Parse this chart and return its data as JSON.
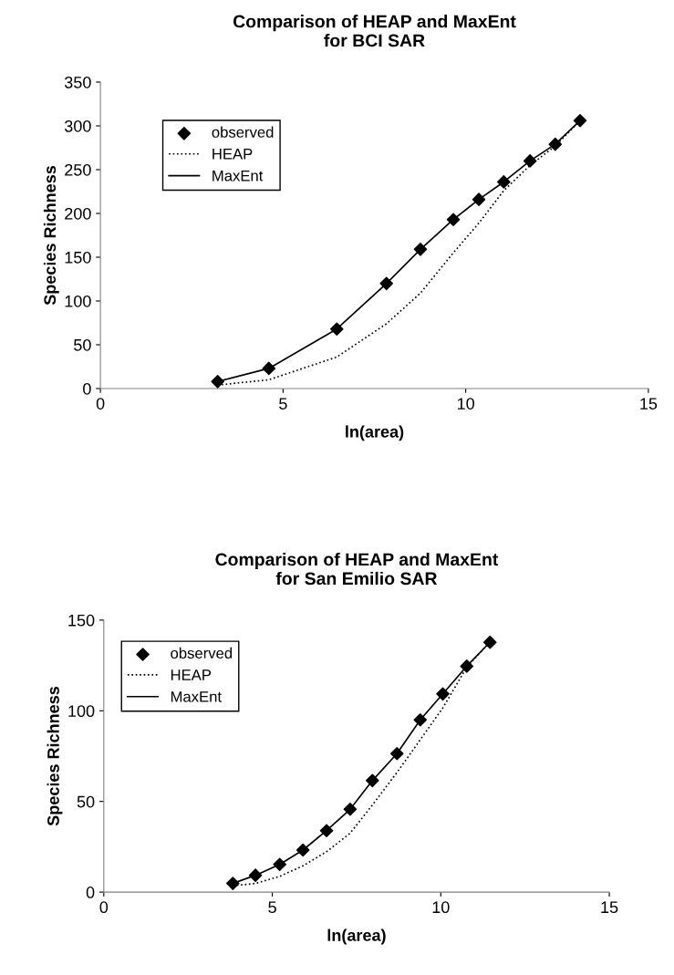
{
  "chart_data": [
    {
      "type": "line",
      "title": "Comparison of HEAP and MaxEnt\nfor BCI SAR",
      "xlabel": "ln(area)",
      "ylabel": "Species Richness",
      "xlim": [
        0,
        15
      ],
      "ylim": [
        0,
        350
      ],
      "xticks": [
        0,
        5,
        10,
        15
      ],
      "yticks": [
        0,
        50,
        100,
        150,
        200,
        250,
        300,
        350
      ],
      "grid": false,
      "legend": "top left",
      "series": [
        {
          "name": "observed",
          "type": "scatter",
          "marker": "diamond",
          "color": "#000000",
          "x": [
            3.21,
            4.61,
            6.47,
            7.83,
            8.76,
            9.66,
            10.36,
            11.04,
            11.76,
            12.45,
            13.13
          ],
          "values": [
            8,
            23,
            68,
            120,
            159,
            193,
            216,
            236,
            260,
            279,
            306
          ]
        },
        {
          "name": "HEAP",
          "line_style": "dotted",
          "color": "#000000",
          "x": [
            3.21,
            4.61,
            6.47,
            7.83,
            8.76,
            9.66,
            10.36,
            11.04,
            11.76,
            12.45,
            13.13
          ],
          "values": [
            4,
            10,
            36,
            74,
            109,
            155,
            189,
            226,
            255,
            277,
            306
          ]
        },
        {
          "name": "MaxEnt",
          "line_style": "solid",
          "color": "#000000",
          "x": [
            3.21,
            4.61,
            6.47,
            7.83,
            8.76,
            9.66,
            10.36,
            11.04,
            11.76,
            12.45,
            13.13
          ],
          "values": [
            8,
            23,
            68,
            120,
            159,
            193,
            216,
            236,
            260,
            279,
            306
          ]
        }
      ]
    },
    {
      "type": "line",
      "title": "Comparison of HEAP and MaxEnt\nfor San Emilio SAR",
      "xlabel": "ln(area)",
      "ylabel": "Species Richness",
      "xlim": [
        0,
        15
      ],
      "ylim": [
        0,
        150
      ],
      "xticks": [
        0,
        5,
        10,
        15
      ],
      "yticks": [
        0,
        50,
        100,
        150
      ],
      "grid": false,
      "legend": "top left",
      "series": [
        {
          "name": "observed",
          "type": "scatter",
          "marker": "diamond",
          "color": "#000000",
          "x": [
            3.83,
            4.5,
            5.22,
            5.91,
            6.61,
            7.31,
            7.97,
            8.7,
            9.39,
            10.06,
            10.77,
            11.46
          ],
          "values": [
            4.8,
            9.3,
            15.3,
            23.2,
            33.9,
            45.7,
            61.5,
            76.4,
            95,
            109.3,
            124.6,
            137.8
          ]
        },
        {
          "name": "HEAP",
          "line_style": "dotted",
          "color": "#000000",
          "x": [
            3.83,
            4.5,
            5.22,
            5.91,
            6.61,
            7.31,
            7.97,
            8.7,
            9.39,
            10.06,
            10.77,
            11.46
          ],
          "values": [
            3.5,
            4.8,
            8.7,
            14.5,
            22.3,
            32.5,
            48,
            66,
            84,
            101.6,
            124,
            138
          ]
        },
        {
          "name": "MaxEnt",
          "line_style": "solid",
          "color": "#000000",
          "x": [
            3.83,
            4.5,
            5.22,
            5.91,
            6.61,
            7.31,
            7.97,
            8.7,
            9.39,
            10.06,
            10.77,
            11.46
          ],
          "values": [
            4.8,
            9.3,
            15.3,
            23.2,
            33.9,
            45.7,
            61.5,
            76.4,
            95,
            109.3,
            124.6,
            137.8
          ]
        }
      ]
    }
  ]
}
